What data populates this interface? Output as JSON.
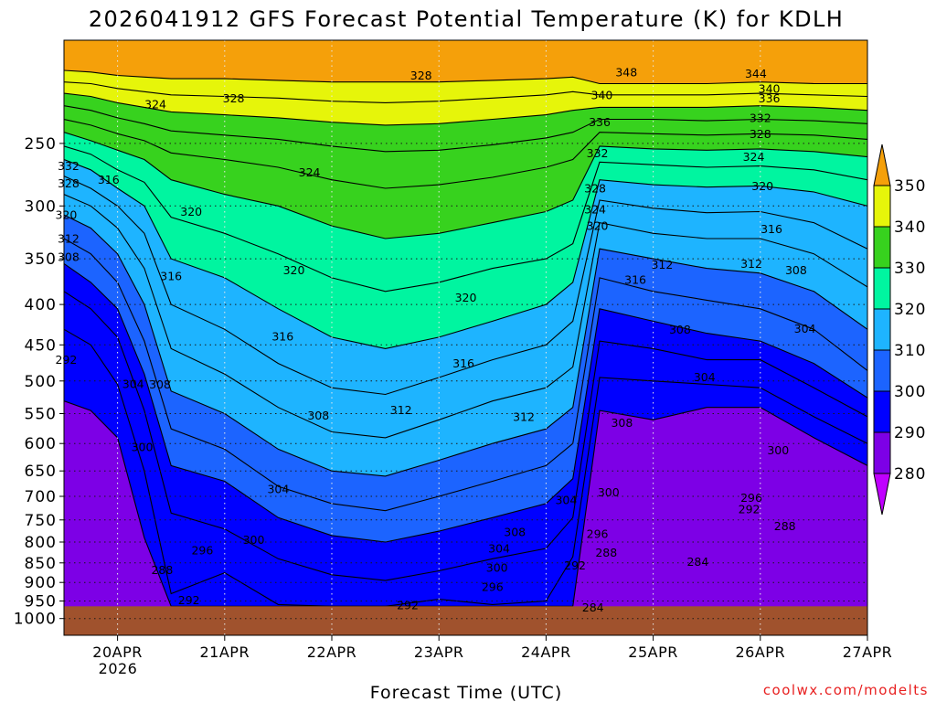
{
  "chart_data": {
    "type": "heatmap",
    "subtype": "filled time-height contour cross-section",
    "title": "2026041912 GFS Forecast Potential Temperature (K) for KDLH",
    "xlabel": "Forecast Time (UTC)",
    "ylabel": "",
    "credit": "coolwx.com/modelts",
    "y_axis": {
      "scale": "pressure (log), inverted",
      "range": [
        1050,
        185
      ],
      "ticks": [
        250,
        300,
        350,
        400,
        450,
        500,
        550,
        600,
        650,
        700,
        750,
        800,
        850,
        900,
        950,
        1000
      ],
      "tick_labels": [
        "250",
        "300",
        "350",
        "400",
        "450",
        "500",
        "550",
        "600",
        "650",
        "700",
        "750",
        "800",
        "850",
        "900",
        "950",
        "1000"
      ],
      "grid": "dotted"
    },
    "x_axis": {
      "range": [
        0,
        180
      ],
      "range_units": "forecast hours from 2026041912",
      "ticks": [
        12,
        36,
        60,
        84,
        108,
        132,
        156,
        180
      ],
      "tick_labels": [
        "20APR",
        "21APR",
        "22APR",
        "23APR",
        "24APR",
        "25APR",
        "26APR",
        "27APR"
      ],
      "year_label": "2026",
      "grid": "dotted"
    },
    "colorbar": {
      "levels": [
        280,
        290,
        300,
        310,
        320,
        330,
        340,
        350
      ],
      "labels": [
        "280",
        "290",
        "300",
        "310",
        "320",
        "330",
        "340",
        "350"
      ],
      "colors": [
        "#c000ff",
        "#7d00e6",
        "#0000ff",
        "#1c64ff",
        "#1eb4ff",
        "#00f5a0",
        "#37d21e",
        "#e6f50a",
        "#f5a00a"
      ],
      "extends": "both"
    },
    "contour_interval": 4,
    "surface_color": "#a0522d",
    "surface_pressure_hpa": 965,
    "series": [
      {
        "name": "288",
        "x": [
          0,
          6,
          12,
          18,
          24,
          36,
          48,
          60,
          72,
          84,
          96,
          108,
          114,
          120,
          132,
          144,
          156,
          168,
          180
        ],
        "p": [
          530,
          545,
          590,
          790,
          965,
          965,
          965,
          965,
          965,
          965,
          965,
          965,
          965,
          545,
          560,
          540,
          540,
          590,
          640
        ]
      },
      {
        "name": "292",
        "x": [
          0,
          6,
          12,
          18,
          24,
          36,
          48,
          60,
          72,
          84,
          96,
          108,
          114,
          120,
          132,
          144,
          156,
          168,
          180
        ],
        "p": [
          430,
          450,
          505,
          650,
          930,
          875,
          960,
          965,
          965,
          945,
          960,
          950,
          835,
          495,
          500,
          505,
          510,
          555,
          600
        ]
      },
      {
        "name": "296",
        "x": [
          0,
          6,
          12,
          18,
          24,
          36,
          48,
          60,
          72,
          84,
          96,
          108,
          114,
          120,
          132,
          144,
          156,
          168,
          180
        ],
        "p": [
          385,
          405,
          440,
          545,
          735,
          770,
          840,
          880,
          895,
          870,
          840,
          815,
          745,
          445,
          455,
          470,
          470,
          510,
          555
        ]
      },
      {
        "name": "300",
        "x": [
          0,
          6,
          12,
          18,
          24,
          36,
          48,
          60,
          72,
          84,
          96,
          108,
          114,
          120,
          132,
          144,
          156,
          168,
          180
        ],
        "p": [
          355,
          375,
          405,
          490,
          640,
          670,
          745,
          785,
          800,
          775,
          745,
          715,
          665,
          405,
          420,
          435,
          445,
          475,
          525
        ]
      },
      {
        "name": "304",
        "x": [
          0,
          6,
          12,
          18,
          24,
          36,
          48,
          60,
          72,
          84,
          96,
          108,
          114,
          120,
          132,
          144,
          156,
          168,
          180
        ],
        "p": [
          330,
          345,
          375,
          445,
          575,
          610,
          680,
          715,
          730,
          700,
          670,
          640,
          600,
          370,
          385,
          395,
          405,
          430,
          485
        ]
      },
      {
        "name": "308",
        "x": [
          0,
          6,
          12,
          18,
          24,
          36,
          48,
          60,
          72,
          84,
          96,
          108,
          114,
          120,
          132,
          144,
          156,
          168,
          180
        ],
        "p": [
          308,
          320,
          345,
          400,
          515,
          550,
          610,
          650,
          660,
          630,
          600,
          575,
          540,
          340,
          350,
          360,
          365,
          385,
          430
        ]
      },
      {
        "name": "312",
        "x": [
          0,
          6,
          12,
          18,
          24,
          36,
          48,
          60,
          72,
          84,
          96,
          108,
          114,
          120,
          132,
          144,
          156,
          168,
          180
        ],
        "p": [
          290,
          300,
          320,
          360,
          455,
          490,
          540,
          580,
          590,
          560,
          530,
          510,
          480,
          315,
          325,
          330,
          330,
          345,
          380
        ]
      },
      {
        "name": "316",
        "x": [
          0,
          6,
          12,
          18,
          24,
          36,
          48,
          60,
          72,
          84,
          96,
          108,
          114,
          120,
          132,
          144,
          156,
          168,
          180
        ],
        "p": [
          275,
          285,
          300,
          325,
          400,
          430,
          475,
          510,
          520,
          495,
          470,
          450,
          420,
          295,
          302,
          306,
          305,
          315,
          340
        ]
      },
      {
        "name": "320",
        "x": [
          0,
          6,
          12,
          18,
          24,
          36,
          48,
          60,
          72,
          84,
          96,
          108,
          114,
          120,
          132,
          144,
          156,
          168,
          180
        ],
        "p": [
          262,
          270,
          285,
          300,
          350,
          370,
          405,
          440,
          455,
          440,
          420,
          400,
          375,
          278,
          282,
          284,
          283,
          288,
          300
        ]
      },
      {
        "name": "324",
        "x": [
          0,
          6,
          12,
          18,
          24,
          36,
          48,
          60,
          72,
          84,
          96,
          108,
          114,
          120,
          132,
          144,
          156,
          168,
          180
        ],
        "p": [
          252,
          258,
          270,
          280,
          310,
          325,
          345,
          370,
          385,
          375,
          360,
          350,
          335,
          264,
          266,
          268,
          267,
          270,
          278
        ]
      },
      {
        "name": "328",
        "x": [
          0,
          6,
          12,
          18,
          24,
          36,
          48,
          60,
          72,
          84,
          96,
          108,
          114,
          120,
          132,
          144,
          156,
          168,
          180
        ],
        "p": [
          242,
          248,
          255,
          262,
          278,
          290,
          300,
          318,
          330,
          325,
          315,
          305,
          295,
          252,
          254,
          255,
          254,
          256,
          260
        ]
      },
      {
        "name": "332",
        "x": [
          0,
          6,
          12,
          18,
          24,
          36,
          48,
          60,
          72,
          84,
          96,
          108,
          114,
          120,
          132,
          144,
          156,
          168,
          180
        ],
        "p": [
          233,
          237,
          243,
          248,
          257,
          262,
          268,
          278,
          285,
          282,
          276,
          268,
          262,
          242,
          243,
          244,
          243,
          244,
          247
        ]
      },
      {
        "name": "336",
        "x": [
          0,
          6,
          12,
          18,
          24,
          36,
          48,
          60,
          72,
          84,
          96,
          108,
          114,
          120,
          132,
          144,
          156,
          168,
          180
        ],
        "p": [
          224,
          227,
          232,
          236,
          241,
          244,
          247,
          252,
          256,
          255,
          251,
          246,
          242,
          233,
          233,
          234,
          233,
          234,
          236
        ]
      },
      {
        "name": "340",
        "x": [
          0,
          6,
          12,
          18,
          24,
          36,
          48,
          60,
          72,
          84,
          96,
          108,
          114,
          120,
          132,
          144,
          156,
          168,
          180
        ],
        "p": [
          216,
          218,
          222,
          225,
          228,
          230,
          232,
          235,
          237,
          236,
          233,
          230,
          227,
          225,
          225,
          225,
          224,
          225,
          227
        ]
      },
      {
        "name": "344",
        "x": [
          0,
          6,
          12,
          18,
          24,
          36,
          48,
          60,
          72,
          84,
          96,
          108,
          114,
          120,
          132,
          144,
          156,
          168,
          180
        ],
        "p": [
          209,
          210,
          213,
          215,
          217,
          218,
          219,
          221,
          222,
          221,
          219,
          217,
          215,
          217,
          217,
          217,
          216,
          217,
          218
        ]
      },
      {
        "name": "348",
        "x": [
          0,
          6,
          12,
          18,
          24,
          36,
          48,
          60,
          72,
          84,
          96,
          108,
          114,
          120,
          132,
          144,
          156,
          168,
          180
        ],
        "p": [
          202,
          203,
          205,
          206,
          207,
          207,
          208,
          209,
          209,
          209,
          208,
          207,
          206,
          210,
          210,
          210,
          209,
          210,
          210
        ]
      }
    ],
    "contour_labels": [
      {
        "text": "324",
        "x": 20.5,
        "p": 223
      },
      {
        "text": "328",
        "x": 80,
        "p": 205
      },
      {
        "text": "328",
        "x": 38,
        "p": 219
      },
      {
        "text": "332",
        "x": 1,
        "p": 267
      },
      {
        "text": "328",
        "x": 1,
        "p": 281
      },
      {
        "text": "316",
        "x": 10,
        "p": 278
      },
      {
        "text": "324",
        "x": 55,
        "p": 272
      },
      {
        "text": "320",
        "x": 0.5,
        "p": 308
      },
      {
        "text": "320",
        "x": 28.5,
        "p": 305
      },
      {
        "text": "312",
        "x": 1,
        "p": 330
      },
      {
        "text": "308",
        "x": 1,
        "p": 348
      },
      {
        "text": "316",
        "x": 24,
        "p": 368
      },
      {
        "text": "320",
        "x": 51.5,
        "p": 362
      },
      {
        "text": "320",
        "x": 90,
        "p": 392
      },
      {
        "text": "316",
        "x": 49,
        "p": 439
      },
      {
        "text": "316",
        "x": 89.5,
        "p": 475
      },
      {
        "text": "304",
        "x": 15.5,
        "p": 504
      },
      {
        "text": "308",
        "x": 21.5,
        "p": 505
      },
      {
        "text": "308",
        "x": 57,
        "p": 553
      },
      {
        "text": "312",
        "x": 75.5,
        "p": 544
      },
      {
        "text": "312",
        "x": 103,
        "p": 555
      },
      {
        "text": "300",
        "x": 17.5,
        "p": 606
      },
      {
        "text": "304",
        "x": 48,
        "p": 685
      },
      {
        "text": "308",
        "x": 101,
        "p": 777
      },
      {
        "text": "304",
        "x": 97.5,
        "p": 815
      },
      {
        "text": "300",
        "x": 97,
        "p": 862
      },
      {
        "text": "296",
        "x": 96,
        "p": 912
      },
      {
        "text": "296",
        "x": 31,
        "p": 819
      },
      {
        "text": "300",
        "x": 42.5,
        "p": 795
      },
      {
        "text": "288",
        "x": 22,
        "p": 868
      },
      {
        "text": "292",
        "x": 28,
        "p": 947
      },
      {
        "text": "292",
        "x": 0.5,
        "p": 470
      },
      {
        "text": "292",
        "x": 77,
        "p": 961
      },
      {
        "text": "292",
        "x": 114.5,
        "p": 856
      },
      {
        "text": "296",
        "x": 119.5,
        "p": 781
      },
      {
        "text": "288",
        "x": 121.5,
        "p": 825
      },
      {
        "text": "300",
        "x": 122,
        "p": 692
      },
      {
        "text": "304",
        "x": 112.5,
        "p": 708
      },
      {
        "text": "308",
        "x": 125,
        "p": 565
      },
      {
        "text": "284",
        "x": 118.5,
        "p": 968
      },
      {
        "text": "284",
        "x": 142,
        "p": 847
      },
      {
        "text": "288",
        "x": 161.5,
        "p": 763
      },
      {
        "text": "292",
        "x": 153.5,
        "p": 727
      },
      {
        "text": "296",
        "x": 154,
        "p": 703
      },
      {
        "text": "300",
        "x": 160,
        "p": 612
      },
      {
        "text": "304",
        "x": 143.5,
        "p": 494
      },
      {
        "text": "308",
        "x": 138,
        "p": 430
      },
      {
        "text": "304",
        "x": 166,
        "p": 429
      },
      {
        "text": "308",
        "x": 164,
        "p": 362
      },
      {
        "text": "312",
        "x": 154,
        "p": 355
      },
      {
        "text": "316",
        "x": 128,
        "p": 372
      },
      {
        "text": "312",
        "x": 134,
        "p": 356
      },
      {
        "text": "316",
        "x": 158.5,
        "p": 321
      },
      {
        "text": "320",
        "x": 119.5,
        "p": 318
      },
      {
        "text": "324",
        "x": 119,
        "p": 303
      },
      {
        "text": "328",
        "x": 119,
        "p": 285
      },
      {
        "text": "332",
        "x": 119.5,
        "p": 257
      },
      {
        "text": "336",
        "x": 120,
        "p": 235
      },
      {
        "text": "340",
        "x": 120.5,
        "p": 217
      },
      {
        "text": "348",
        "x": 126,
        "p": 203
      },
      {
        "text": "320",
        "x": 156.5,
        "p": 283
      },
      {
        "text": "324",
        "x": 154.5,
        "p": 260
      },
      {
        "text": "328",
        "x": 156,
        "p": 243
      },
      {
        "text": "332",
        "x": 156,
        "p": 232
      },
      {
        "text": "336",
        "x": 158,
        "p": 219
      },
      {
        "text": "340",
        "x": 158,
        "p": 213
      },
      {
        "text": "344",
        "x": 155,
        "p": 204
      }
    ]
  }
}
